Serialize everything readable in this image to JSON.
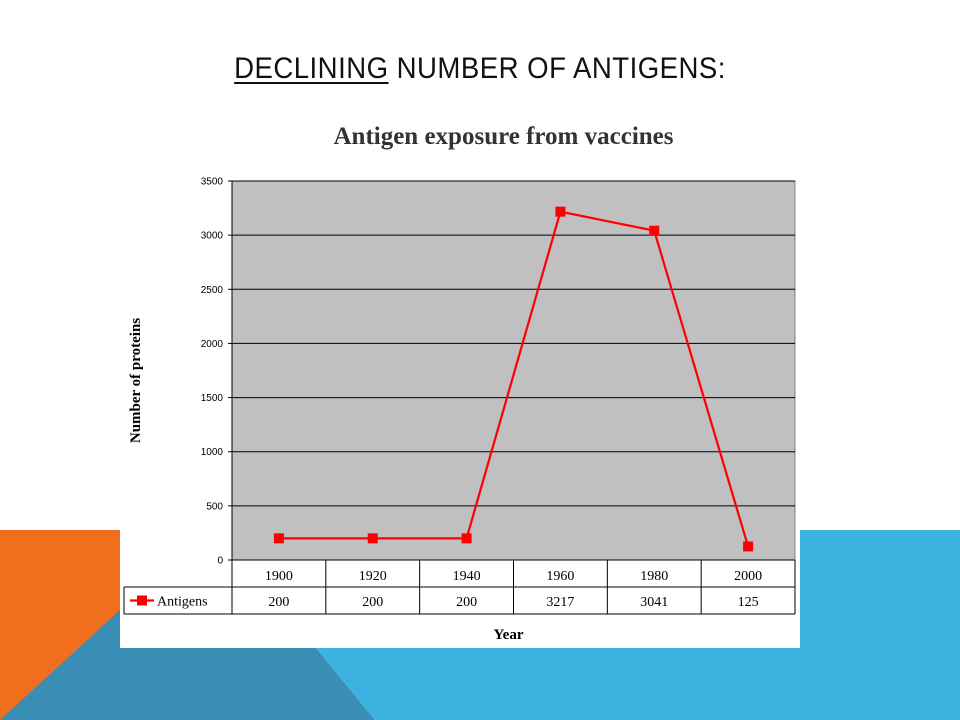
{
  "slide": {
    "title_underlined": "DECLINING",
    "title_rest": " NUMBER OF ANTIGENS:",
    "colors": {
      "orange": "#f26e1f",
      "blue": "#3cb2e0",
      "steel_blue": "#3a8db5"
    }
  },
  "chart_data": {
    "type": "line",
    "title": "Antigen exposure from vaccines",
    "xlabel": "Year",
    "ylabel": "Number of proteins",
    "categories": [
      "1900",
      "1920",
      "1940",
      "1960",
      "1980",
      "2000"
    ],
    "series": [
      {
        "name": "Antigens",
        "values": [
          200,
          200,
          200,
          3217,
          3041,
          125
        ],
        "color": "#ff0000",
        "marker": "square"
      }
    ],
    "ylim": [
      0,
      3500
    ],
    "yticks": [
      0,
      500,
      1000,
      1500,
      2000,
      2500,
      3000,
      3500
    ],
    "grid": true,
    "plot_background": "#c0c0c0",
    "legend": "data-table",
    "data_table": true
  }
}
